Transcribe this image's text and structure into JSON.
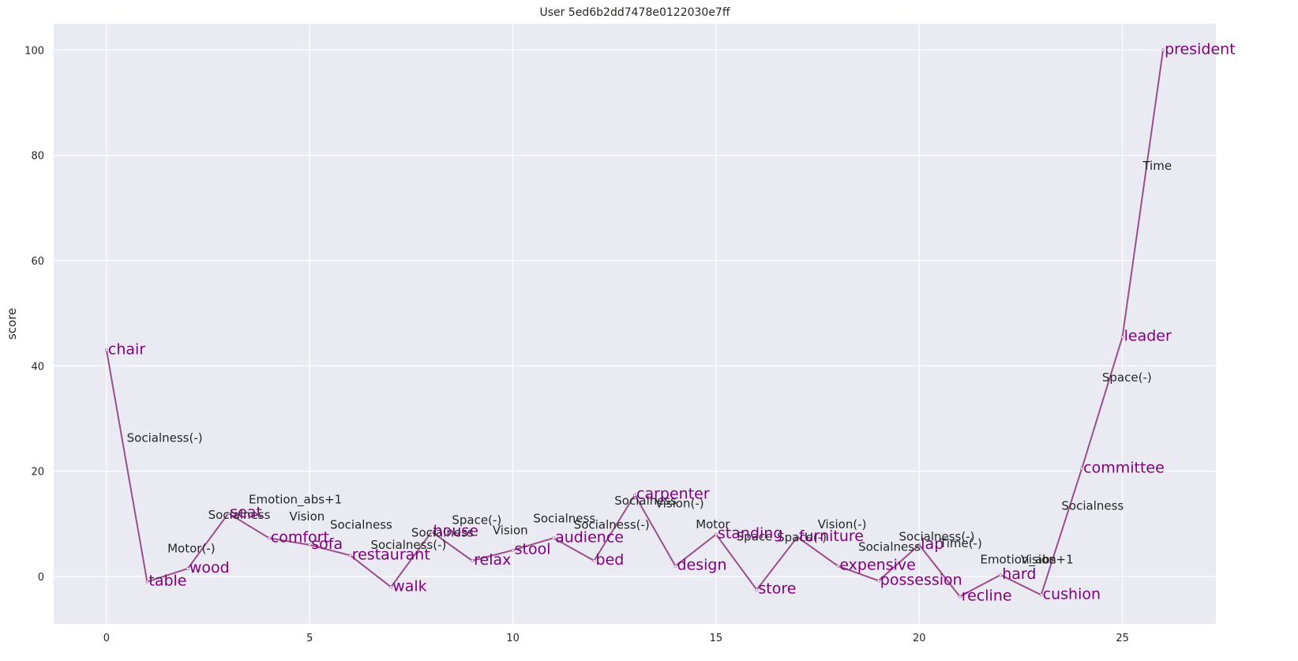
{
  "chart_data": {
    "type": "line",
    "title": "User 5ed6b2dd7478e0122030e7ff",
    "xlabel": "",
    "ylabel": "score",
    "xlim": [
      -1.3,
      27.3
    ],
    "ylim": [
      -9,
      105
    ],
    "xticks": [
      0,
      5,
      10,
      15,
      20,
      25
    ],
    "yticks": [
      0,
      20,
      40,
      60,
      80,
      100
    ],
    "grid": true,
    "line_color": "#9b4f8a",
    "word_color": "#800080",
    "background": "#eaeaf2",
    "points": [
      {
        "x": 0,
        "y": 43,
        "word": "chair"
      },
      {
        "x": 1,
        "y": -1,
        "word": "table"
      },
      {
        "x": 2,
        "y": 1.5,
        "word": "wood"
      },
      {
        "x": 3,
        "y": 12,
        "word": "seat"
      },
      {
        "x": 4,
        "y": 7.3,
        "word": "comfort"
      },
      {
        "x": 5,
        "y": 6,
        "word": "sofa"
      },
      {
        "x": 6,
        "y": 4,
        "word": "restaurant"
      },
      {
        "x": 7,
        "y": -2,
        "word": "walk"
      },
      {
        "x": 8,
        "y": 8.5,
        "word": "house"
      },
      {
        "x": 9,
        "y": 3,
        "word": "relax"
      },
      {
        "x": 10,
        "y": 5,
        "word": "stool"
      },
      {
        "x": 11,
        "y": 7.3,
        "word": "audience"
      },
      {
        "x": 12,
        "y": 3,
        "word": "bed"
      },
      {
        "x": 13,
        "y": 15.5,
        "word": "carpenter"
      },
      {
        "x": 14,
        "y": 2,
        "word": "design"
      },
      {
        "x": 15,
        "y": 8,
        "word": "standing"
      },
      {
        "x": 16,
        "y": -2.5,
        "word": "store"
      },
      {
        "x": 17,
        "y": 7.5,
        "word": "furniture"
      },
      {
        "x": 18,
        "y": 2,
        "word": "expensive"
      },
      {
        "x": 19,
        "y": -0.8,
        "word": "possession"
      },
      {
        "x": 20,
        "y": 6,
        "word": "lap"
      },
      {
        "x": 21,
        "y": -3.8,
        "word": "recline"
      },
      {
        "x": 22,
        "y": 0.3,
        "word": "hard"
      },
      {
        "x": 23,
        "y": -3.5,
        "word": "cushion"
      },
      {
        "x": 24,
        "y": 20.5,
        "word": "committee"
      },
      {
        "x": 25,
        "y": 45.5,
        "word": "leader"
      },
      {
        "x": 26,
        "y": 100,
        "word": "president"
      }
    ],
    "annotations": [
      {
        "x": 0.5,
        "y": 26.3,
        "text": "Socialness(-)"
      },
      {
        "x": 1.5,
        "y": 5.3,
        "text": "Motor(-)"
      },
      {
        "x": 2.5,
        "y": 11.7,
        "text": "Socialness"
      },
      {
        "x": 3.5,
        "y": 14.6,
        "text": "Emotion_abs+1"
      },
      {
        "x": 4.5,
        "y": 11.4,
        "text": "Vision"
      },
      {
        "x": 5.5,
        "y": 9.8,
        "text": "Socialness"
      },
      {
        "x": 6.5,
        "y": 6.0,
        "text": "Socialness(-)"
      },
      {
        "x": 7.5,
        "y": 8.3,
        "text": "Socialness"
      },
      {
        "x": 8.5,
        "y": 10.7,
        "text": "Space(-)"
      },
      {
        "x": 9.5,
        "y": 8.8,
        "text": "Vision"
      },
      {
        "x": 10.5,
        "y": 11.0,
        "text": "Socialness"
      },
      {
        "x": 11.5,
        "y": 9.8,
        "text": "Socialness(-)"
      },
      {
        "x": 12.5,
        "y": 14.4,
        "text": "Socialness"
      },
      {
        "x": 13.5,
        "y": 13.9,
        "text": "Vision(-)"
      },
      {
        "x": 14.5,
        "y": 9.9,
        "text": "Motor"
      },
      {
        "x": 15.5,
        "y": 7.6,
        "text": "Space"
      },
      {
        "x": 16.5,
        "y": 7.4,
        "text": "Space(-)"
      },
      {
        "x": 17.5,
        "y": 9.9,
        "text": "Vision(-)"
      },
      {
        "x": 18.5,
        "y": 5.6,
        "text": "Socialness"
      },
      {
        "x": 19.5,
        "y": 7.6,
        "text": "Socialness(-)"
      },
      {
        "x": 20.5,
        "y": 6.3,
        "text": "Time(-)"
      },
      {
        "x": 21.5,
        "y": 3.2,
        "text": "Emotion_abs+1"
      },
      {
        "x": 22.5,
        "y": 3.2,
        "text": "Vision"
      },
      {
        "x": 23.5,
        "y": 13.4,
        "text": "Socialness"
      },
      {
        "x": 24.5,
        "y": 37.8,
        "text": "Space(-)"
      },
      {
        "x": 25.5,
        "y": 78.0,
        "text": "Time"
      }
    ]
  }
}
